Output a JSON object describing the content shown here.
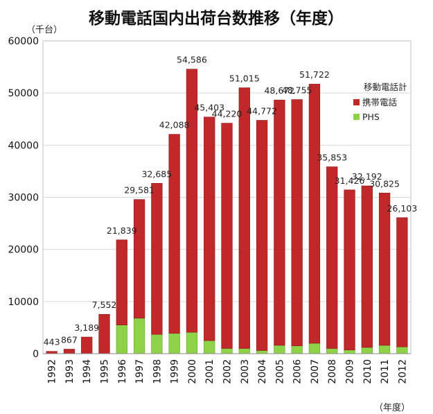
{
  "chart_data": {
    "type": "bar",
    "stacked": true,
    "title": "移動電話国内出荷台数推移（年度）",
    "y_unit_label": "（千台）",
    "x_unit_label": "（年度）",
    "ylim": [
      0,
      60000
    ],
    "yticks": [
      0,
      10000,
      20000,
      30000,
      40000,
      50000,
      60000
    ],
    "ytick_labels": [
      "0",
      "10000",
      "20000",
      "30000",
      "40000",
      "50000",
      "60000"
    ],
    "grid": true,
    "legend_title": "移動電話計",
    "legend_position": "top-right",
    "categories": [
      "1992",
      "1993",
      "1994",
      "1995",
      "1996",
      "1997",
      "1998",
      "1999",
      "2000",
      "2001",
      "2002",
      "2003",
      "2004",
      "2005",
      "2006",
      "2007",
      "2008",
      "2009",
      "2010",
      "2011",
      "2012"
    ],
    "series": [
      {
        "name": "PHS",
        "color": "#8ed24a",
        "values": [
          0,
          0,
          0,
          0,
          5500,
          6800,
          3700,
          3900,
          4100,
          2500,
          1000,
          1000,
          600,
          1600,
          1500,
          2000,
          1000,
          700,
          1200,
          1600,
          1300
        ]
      },
      {
        "name": "携帯電話",
        "color": "#c0282a",
        "values": [
          443,
          867,
          3189,
          7552,
          16339,
          22781,
          28985,
          38188,
          50486,
          42903,
          43220,
          50015,
          44172,
          47072,
          47255,
          49722,
          34853,
          30726,
          30992,
          29225,
          24803
        ]
      }
    ],
    "totals": [
      443,
      867,
      3189,
      7552,
      21839,
      29581,
      32685,
      42088,
      54586,
      45403,
      44220,
      51015,
      44772,
      48672,
      48755,
      51722,
      35853,
      31426,
      32192,
      30825,
      26103
    ],
    "total_labels": [
      "443",
      "867",
      "3,189",
      "7,552",
      "21,839",
      "29,581",
      "32,685",
      "42,088",
      "54,586",
      "45,403",
      "44,220",
      "51,015",
      "44,772",
      "48,672",
      "48,755",
      "51,722",
      "35,853",
      "31,426",
      "32,192",
      "30,825",
      "26,103"
    ]
  }
}
